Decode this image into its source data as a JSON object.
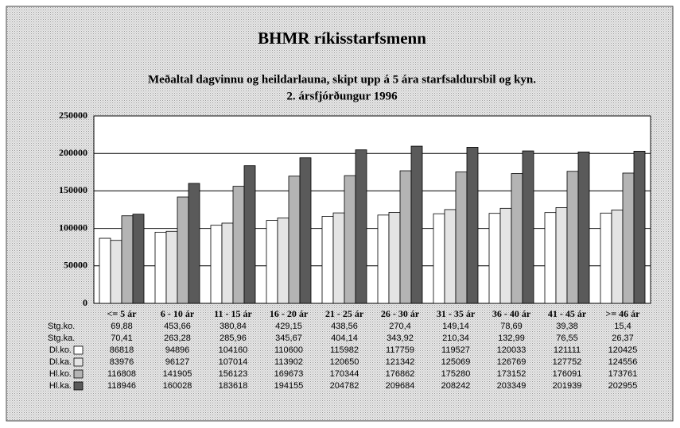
{
  "chart_data": {
    "type": "bar",
    "title": "BHMR ríkisstarfsmenn",
    "subtitle": [
      "Meðaltal dagvinnu og heildarlauna, skipt upp á 5 ára starfsaldursbil og kyn.",
      "2. ársfjórðungur 1996"
    ],
    "categories": [
      "<= 5 ár",
      "6 - 10 ár",
      "11 - 15 ár",
      "16 - 20 ár",
      "21 - 25 ár",
      "26 - 30 ár",
      "31 - 35 ár",
      "36 - 40 ár",
      "41 - 45 ár",
      ">= 46 ár"
    ],
    "table_rows": [
      {
        "name": "Stg.ko.",
        "values": [
          "69,88",
          "453,66",
          "380,84",
          "429,15",
          "438,56",
          "270,4",
          "149,14",
          "78,69",
          "39,38",
          "15,4"
        ]
      },
      {
        "name": "Stg.ka.",
        "values": [
          "70,41",
          "263,28",
          "285,96",
          "345,67",
          "404,14",
          "343,92",
          "210,34",
          "132,99",
          "76,55",
          "26,37"
        ]
      }
    ],
    "series": [
      {
        "name": "Dl.ko.",
        "color": "#ffffff",
        "values": [
          86818,
          94896,
          104160,
          110600,
          115982,
          117759,
          119527,
          120033,
          121111,
          120425
        ]
      },
      {
        "name": "Dl.ka.",
        "color": "#e4e4e4",
        "values": [
          83976,
          96127,
          107014,
          113902,
          120650,
          121342,
          125069,
          126769,
          127752,
          124556
        ]
      },
      {
        "name": "Hl.ko.",
        "color": "#b4b4b4",
        "values": [
          116808,
          141905,
          156123,
          169673,
          170344,
          176862,
          175280,
          173152,
          176091,
          173761
        ]
      },
      {
        "name": "Hl.ka.",
        "color": "#5a5a5a",
        "values": [
          118946,
          160028,
          183618,
          194155,
          204782,
          209684,
          208242,
          203349,
          201939,
          202955
        ]
      }
    ],
    "ylim": [
      0,
      250000
    ],
    "yticks": [
      0,
      50000,
      100000,
      150000,
      200000,
      250000
    ],
    "grid": true
  }
}
